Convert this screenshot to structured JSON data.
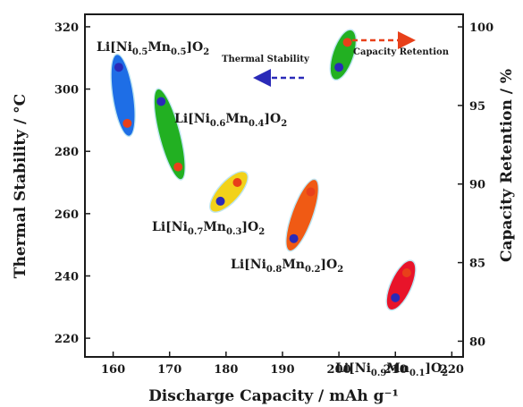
{
  "chart_data": {
    "type": "scatter",
    "xlabel": "Discharge Capacity / mAh g⁻¹",
    "ylabel_left": "Thermal Stability / °C",
    "ylabel_right": "Capacity Retention / %",
    "xlim": [
      155,
      222
    ],
    "ylim_left": [
      214,
      324
    ],
    "ylim_right": [
      79,
      100.8
    ],
    "xticks": [
      "160",
      "170",
      "180",
      "190",
      "200",
      "210",
      "220"
    ],
    "yticks_left": [
      "220",
      "240",
      "260",
      "280",
      "300",
      "320"
    ],
    "yticks_right": [
      "80",
      "85",
      "90",
      "95",
      "100"
    ],
    "legend": {
      "thermal_label": "Thermal Stability",
      "capacity_label": "Capacity Retention",
      "thermal_color": "#2a2ab8",
      "capacity_color": "#e8401a"
    },
    "series": [
      {
        "name_main": "Li[Ni",
        "ni": "0.5",
        "mid": "Mn",
        "mn": "0.5",
        "tail": "]O",
        "o": "2",
        "color": "#1e6ee6",
        "thermal_point": {
          "x": 161,
          "y": 307
        },
        "capacity_point": {
          "x": 162.5,
          "y": 289
        }
      },
      {
        "name_main": "Li[Ni",
        "ni": "0.6",
        "mid": "Mn",
        "mn": "0.4",
        "tail": "]O",
        "o": "2",
        "color": "#22b022",
        "thermal_point": {
          "x": 168.5,
          "y": 296
        },
        "capacity_point": {
          "x": 171.5,
          "y": 275
        }
      },
      {
        "name_main": "Li[Ni",
        "ni": "0.7",
        "mid": "Mn",
        "mn": "0.3",
        "tail": "]O",
        "o": "2",
        "color": "#f2d21a",
        "thermal_point": {
          "x": 179,
          "y": 264
        },
        "capacity_point": {
          "x": 182,
          "y": 270
        }
      },
      {
        "name_main": "Li[Ni",
        "ni": "0.8",
        "mid": "Mn",
        "mn": "0.2",
        "tail": "]O",
        "o": "2",
        "color": "#f05a14",
        "thermal_point": {
          "x": 192,
          "y": 252
        },
        "capacity_point": {
          "x": 195,
          "y": 267
        }
      },
      {
        "name_main": "Li[Ni",
        "ni": "0.9",
        "mid": "Mn",
        "mn": "0.1",
        "tail": "]O",
        "o": "2",
        "color": "#e8142a",
        "thermal_point": {
          "x": 210,
          "y": 233
        },
        "capacity_point": {
          "x": 212,
          "y": 241
        }
      }
    ],
    "legend_marker": {
      "color": "#22b022",
      "thermal_point": {
        "x": 200,
        "y": 307
      },
      "capacity_point": {
        "x": 201.5,
        "y": 315
      }
    }
  }
}
